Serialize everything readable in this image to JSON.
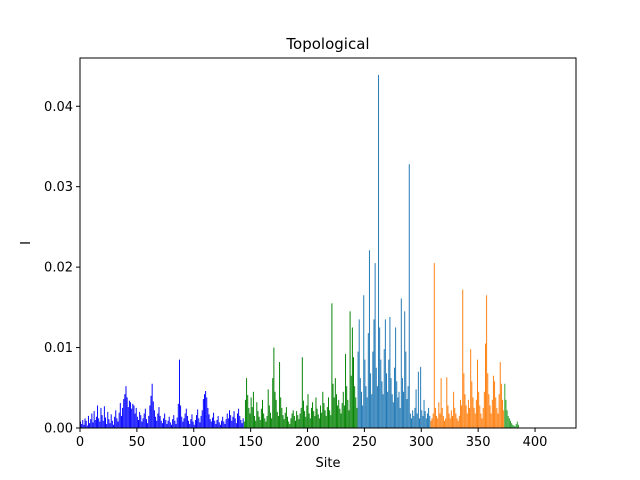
{
  "chart_data": {
    "type": "bar",
    "title": "Topological",
    "xlabel": "Site",
    "ylabel": "I",
    "xlim": [
      0,
      436
    ],
    "ylim": [
      0,
      0.046
    ],
    "xticks": [
      0,
      50,
      100,
      150,
      200,
      250,
      300,
      350,
      400
    ],
    "xtick_labels": [
      "0",
      "50",
      "100",
      "150",
      "200",
      "250",
      "300",
      "350",
      "400"
    ],
    "yticks": [
      0.0,
      0.01,
      0.02,
      0.03,
      0.04
    ],
    "ytick_labels": [
      "0.00",
      "0.01",
      "0.02",
      "0.03",
      "0.04"
    ],
    "grid": false,
    "legend": "none",
    "segments": [
      {
        "start": 0,
        "end": 144,
        "color": "#0000ff"
      },
      {
        "start": 144,
        "end": 244,
        "color": "#008000"
      },
      {
        "start": 244,
        "end": 308,
        "color": "#1f77b4"
      },
      {
        "start": 308,
        "end": 373,
        "color": "#ff7f0e"
      },
      {
        "start": 373,
        "end": 436,
        "color": "#2ca02c"
      }
    ],
    "values": [
      0.0008,
      0.0005,
      0.001,
      0.0004,
      0.0012,
      0.0009,
      0.0003,
      0.0015,
      0.0006,
      0.0011,
      0.0018,
      0.0007,
      0.0021,
      0.001,
      0.0014,
      0.0028,
      0.0012,
      0.0008,
      0.0025,
      0.0016,
      0.0009,
      0.0027,
      0.0013,
      0.0005,
      0.002,
      0.0011,
      0.0006,
      0.0017,
      0.0009,
      0.0004,
      0.0014,
      0.0022,
      0.0012,
      0.0008,
      0.0019,
      0.0031,
      0.0015,
      0.0025,
      0.0036,
      0.0042,
      0.0052,
      0.0038,
      0.0026,
      0.0034,
      0.0032,
      0.0024,
      0.003,
      0.0028,
      0.0018,
      0.0025,
      0.0014,
      0.001,
      0.002,
      0.0016,
      0.0008,
      0.0012,
      0.0018,
      0.0024,
      0.0011,
      0.0006,
      0.0015,
      0.0028,
      0.004,
      0.0055,
      0.0033,
      0.0022,
      0.0014,
      0.0009,
      0.0018,
      0.0026,
      0.0015,
      0.0009,
      0.0006,
      0.0012,
      0.0018,
      0.001,
      0.0005,
      0.0009,
      0.0014,
      0.0007,
      0.0004,
      0.0011,
      0.0016,
      0.0009,
      0.0005,
      0.0013,
      0.003,
      0.0085,
      0.0028,
      0.0014,
      0.0008,
      0.0012,
      0.0018,
      0.0024,
      0.0015,
      0.0009,
      0.0005,
      0.0011,
      0.0017,
      0.0008,
      0.0004,
      0.001,
      0.0016,
      0.0023,
      0.0012,
      0.0007,
      0.0015,
      0.0022,
      0.0036,
      0.0042,
      0.0046,
      0.0038,
      0.0025,
      0.0017,
      0.0011,
      0.0008,
      0.0013,
      0.0019,
      0.0009,
      0.0005,
      0.001,
      0.0015,
      0.0007,
      0.0004,
      0.0009,
      0.0014,
      0.0008,
      0.0005,
      0.0011,
      0.0018,
      0.0012,
      0.0022,
      0.0016,
      0.0009,
      0.0014,
      0.0021,
      0.0012,
      0.0006,
      0.0018,
      0.0024,
      0.0015,
      0.001,
      0.0006,
      0.0012,
      0.0008,
      0.0035,
      0.0062,
      0.0041,
      0.0025,
      0.0018,
      0.0038,
      0.0026,
      0.0045,
      0.0015,
      0.0009,
      0.0032,
      0.0021,
      0.0014,
      0.001,
      0.0024,
      0.0035,
      0.0018,
      0.0012,
      0.0008,
      0.0015,
      0.0048,
      0.0028,
      0.0019,
      0.0012,
      0.0062,
      0.01,
      0.0045,
      0.0035,
      0.002,
      0.0015,
      0.0082,
      0.0038,
      0.0025,
      0.0016,
      0.0011,
      0.0019,
      0.0026,
      0.0014,
      0.0008,
      0.0005,
      0.0012,
      0.0018,
      0.0022,
      0.0015,
      0.0009,
      0.0021,
      0.0016,
      0.0011,
      0.0018,
      0.0025,
      0.0088,
      0.0034,
      0.0021,
      0.0014,
      0.0028,
      0.0042,
      0.0018,
      0.0012,
      0.0025,
      0.0032,
      0.0021,
      0.0015,
      0.0038,
      0.0024,
      0.0017,
      0.0012,
      0.0028,
      0.0019,
      0.0045,
      0.0031,
      0.0022,
      0.0015,
      0.0026,
      0.0038,
      0.0022,
      0.0016,
      0.0155,
      0.0055,
      0.0038,
      0.0062,
      0.0042,
      0.0028,
      0.0035,
      0.0024,
      0.0018,
      0.0031,
      0.0045,
      0.0028,
      0.0092,
      0.0052,
      0.0035,
      0.0022,
      0.0145,
      0.0065,
      0.0125,
      0.0088,
      0.0052,
      0.0038,
      0.0025,
      0.0095,
      0.0135,
      0.0062,
      0.0045,
      0.0028,
      0.0165,
      0.0085,
      0.0052,
      0.0038,
      0.0118,
      0.0221,
      0.0068,
      0.0042,
      0.0095,
      0.0135,
      0.0205,
      0.0075,
      0.0052,
      0.0439,
      0.0125,
      0.0085,
      0.0058,
      0.0042,
      0.0098,
      0.0135,
      0.0068,
      0.0045,
      0.0085,
      0.0138,
      0.0062,
      0.0042,
      0.0032,
      0.0075,
      0.0125,
      0.0058,
      0.0038,
      0.0045,
      0.0025,
      0.0161,
      0.0062,
      0.0045,
      0.0145,
      0.0095,
      0.0036,
      0.0052,
      0.0328,
      0.0018,
      0.0012,
      0.0022,
      0.0015,
      0.0025,
      0.0048,
      0.0018,
      0.007,
      0.0012,
      0.0076,
      0.0022,
      0.0015,
      0.0035,
      0.0021,
      0.0012,
      0.0018,
      0.0025,
      0.0015,
      0.0009,
      0.0012,
      0.0018,
      0.0205,
      0.0025,
      0.0015,
      0.0012,
      0.0032,
      0.0018,
      0.0062,
      0.0025,
      0.0015,
      0.0009,
      0.0012,
      0.0063,
      0.0028,
      0.0018,
      0.0012,
      0.0022,
      0.0015,
      0.0045,
      0.0025,
      0.0018,
      0.0012,
      0.0009,
      0.0015,
      0.0035,
      0.0028,
      0.0172,
      0.0068,
      0.0042,
      0.0028,
      0.0018,
      0.0035,
      0.0025,
      0.0098,
      0.0058,
      0.0038,
      0.0025,
      0.0018,
      0.0035,
      0.0085,
      0.0045,
      0.0028,
      0.0018,
      0.0012,
      0.0025,
      0.0045,
      0.0105,
      0.0165,
      0.0068,
      0.0042,
      0.0028,
      0.0018,
      0.0035,
      0.0065,
      0.0058,
      0.0038,
      0.0025,
      0.0018,
      0.0042,
      0.0082,
      0.0055,
      0.0035,
      0.0022,
      0.0055,
      0.0035,
      0.0022,
      0.0015,
      0.0012,
      0.0009,
      0.0006,
      0.0004,
      0.0003,
      0.0002,
      0.0005,
      0.0008,
      0.0004
    ]
  }
}
